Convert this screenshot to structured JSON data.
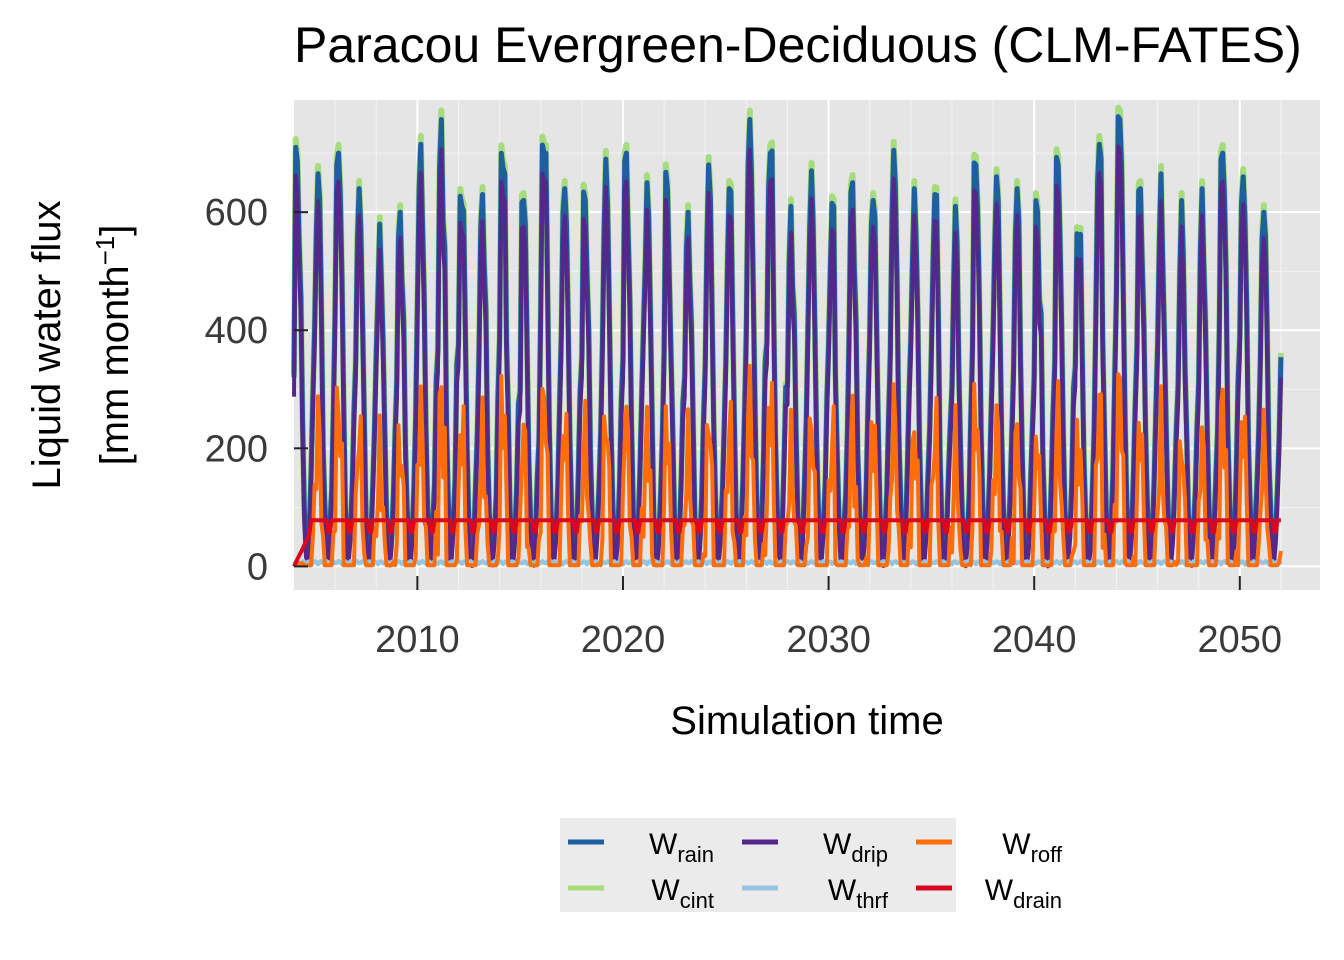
{
  "chart_data": {
    "type": "line",
    "title": "Paracou Evergreen-Deciduous (CLM-FATES)",
    "xlabel": "Simulation time",
    "ylabel_line1": "Liquid water flux",
    "ylabel_line2": "[mm month",
    "ylabel_sup": "−1",
    "ylabel_close": "]",
    "xlim": [
      2004.0,
      2053.9
    ],
    "ylim": [
      -40,
      790
    ],
    "x_ticks": [
      2010,
      2020,
      2030,
      2040,
      2050
    ],
    "x_tick_labels": [
      "2010",
      "2020",
      "2030",
      "2040",
      "2050"
    ],
    "y_ticks": [
      0,
      200,
      400,
      600
    ],
    "y_tick_labels": [
      "0",
      "200",
      "400",
      "600"
    ],
    "x_start": 2004.0,
    "x_end": 2052.0,
    "grid": true,
    "legend_placement": "bottom-center",
    "series": [
      {
        "id": "rain",
        "name": "W",
        "sub": "rain",
        "color": "#1f5fa0",
        "description": "monthly rainfall, peaks about 600–760 each wet season"
      },
      {
        "id": "cint",
        "name": "W",
        "sub": "cint",
        "color": "#a6dc7e"
      },
      {
        "id": "drip",
        "name": "W",
        "sub": "drip",
        "color": "#54288a"
      },
      {
        "id": "thrf",
        "name": "W",
        "sub": "thrf",
        "color": "#94c4df"
      },
      {
        "id": "roff",
        "name": "W",
        "sub": "roff",
        "color": "#ff6d0a"
      },
      {
        "id": "drain",
        "name": "W",
        "sub": "drain",
        "color": "#d7081f"
      }
    ],
    "annual_rain_peaks": [
      [
        2004,
        685
      ],
      [
        2005,
        665
      ],
      [
        2006,
        700
      ],
      [
        2007,
        640
      ],
      [
        2008,
        580
      ],
      [
        2009,
        600
      ],
      [
        2010,
        715
      ],
      [
        2011,
        757
      ],
      [
        2012,
        610
      ],
      [
        2013,
        630
      ],
      [
        2014,
        675
      ],
      [
        2015,
        620
      ],
      [
        2016,
        700
      ],
      [
        2017,
        640
      ],
      [
        2018,
        620
      ],
      [
        2019,
        690
      ],
      [
        2020,
        700
      ],
      [
        2021,
        650
      ],
      [
        2022,
        640
      ],
      [
        2023,
        600
      ],
      [
        2024,
        680
      ],
      [
        2025,
        640
      ],
      [
        2026,
        757
      ],
      [
        2027,
        700
      ],
      [
        2028,
        610
      ],
      [
        2029,
        670
      ],
      [
        2030,
        615
      ],
      [
        2031,
        650
      ],
      [
        2032,
        620
      ],
      [
        2033,
        705
      ],
      [
        2034,
        640
      ],
      [
        2035,
        630
      ],
      [
        2036,
        610
      ],
      [
        2037,
        680
      ],
      [
        2038,
        660
      ],
      [
        2039,
        640
      ],
      [
        2040,
        600
      ],
      [
        2041,
        680
      ],
      [
        2042,
        560
      ],
      [
        2043,
        715
      ],
      [
        2044,
        757
      ],
      [
        2045,
        640
      ],
      [
        2046,
        665
      ],
      [
        2047,
        620
      ],
      [
        2048,
        640
      ],
      [
        2049,
        700
      ],
      [
        2050,
        660
      ],
      [
        2051,
        600
      ]
    ],
    "drain_plateau": 78,
    "runoff_peaks_max": 400
  }
}
